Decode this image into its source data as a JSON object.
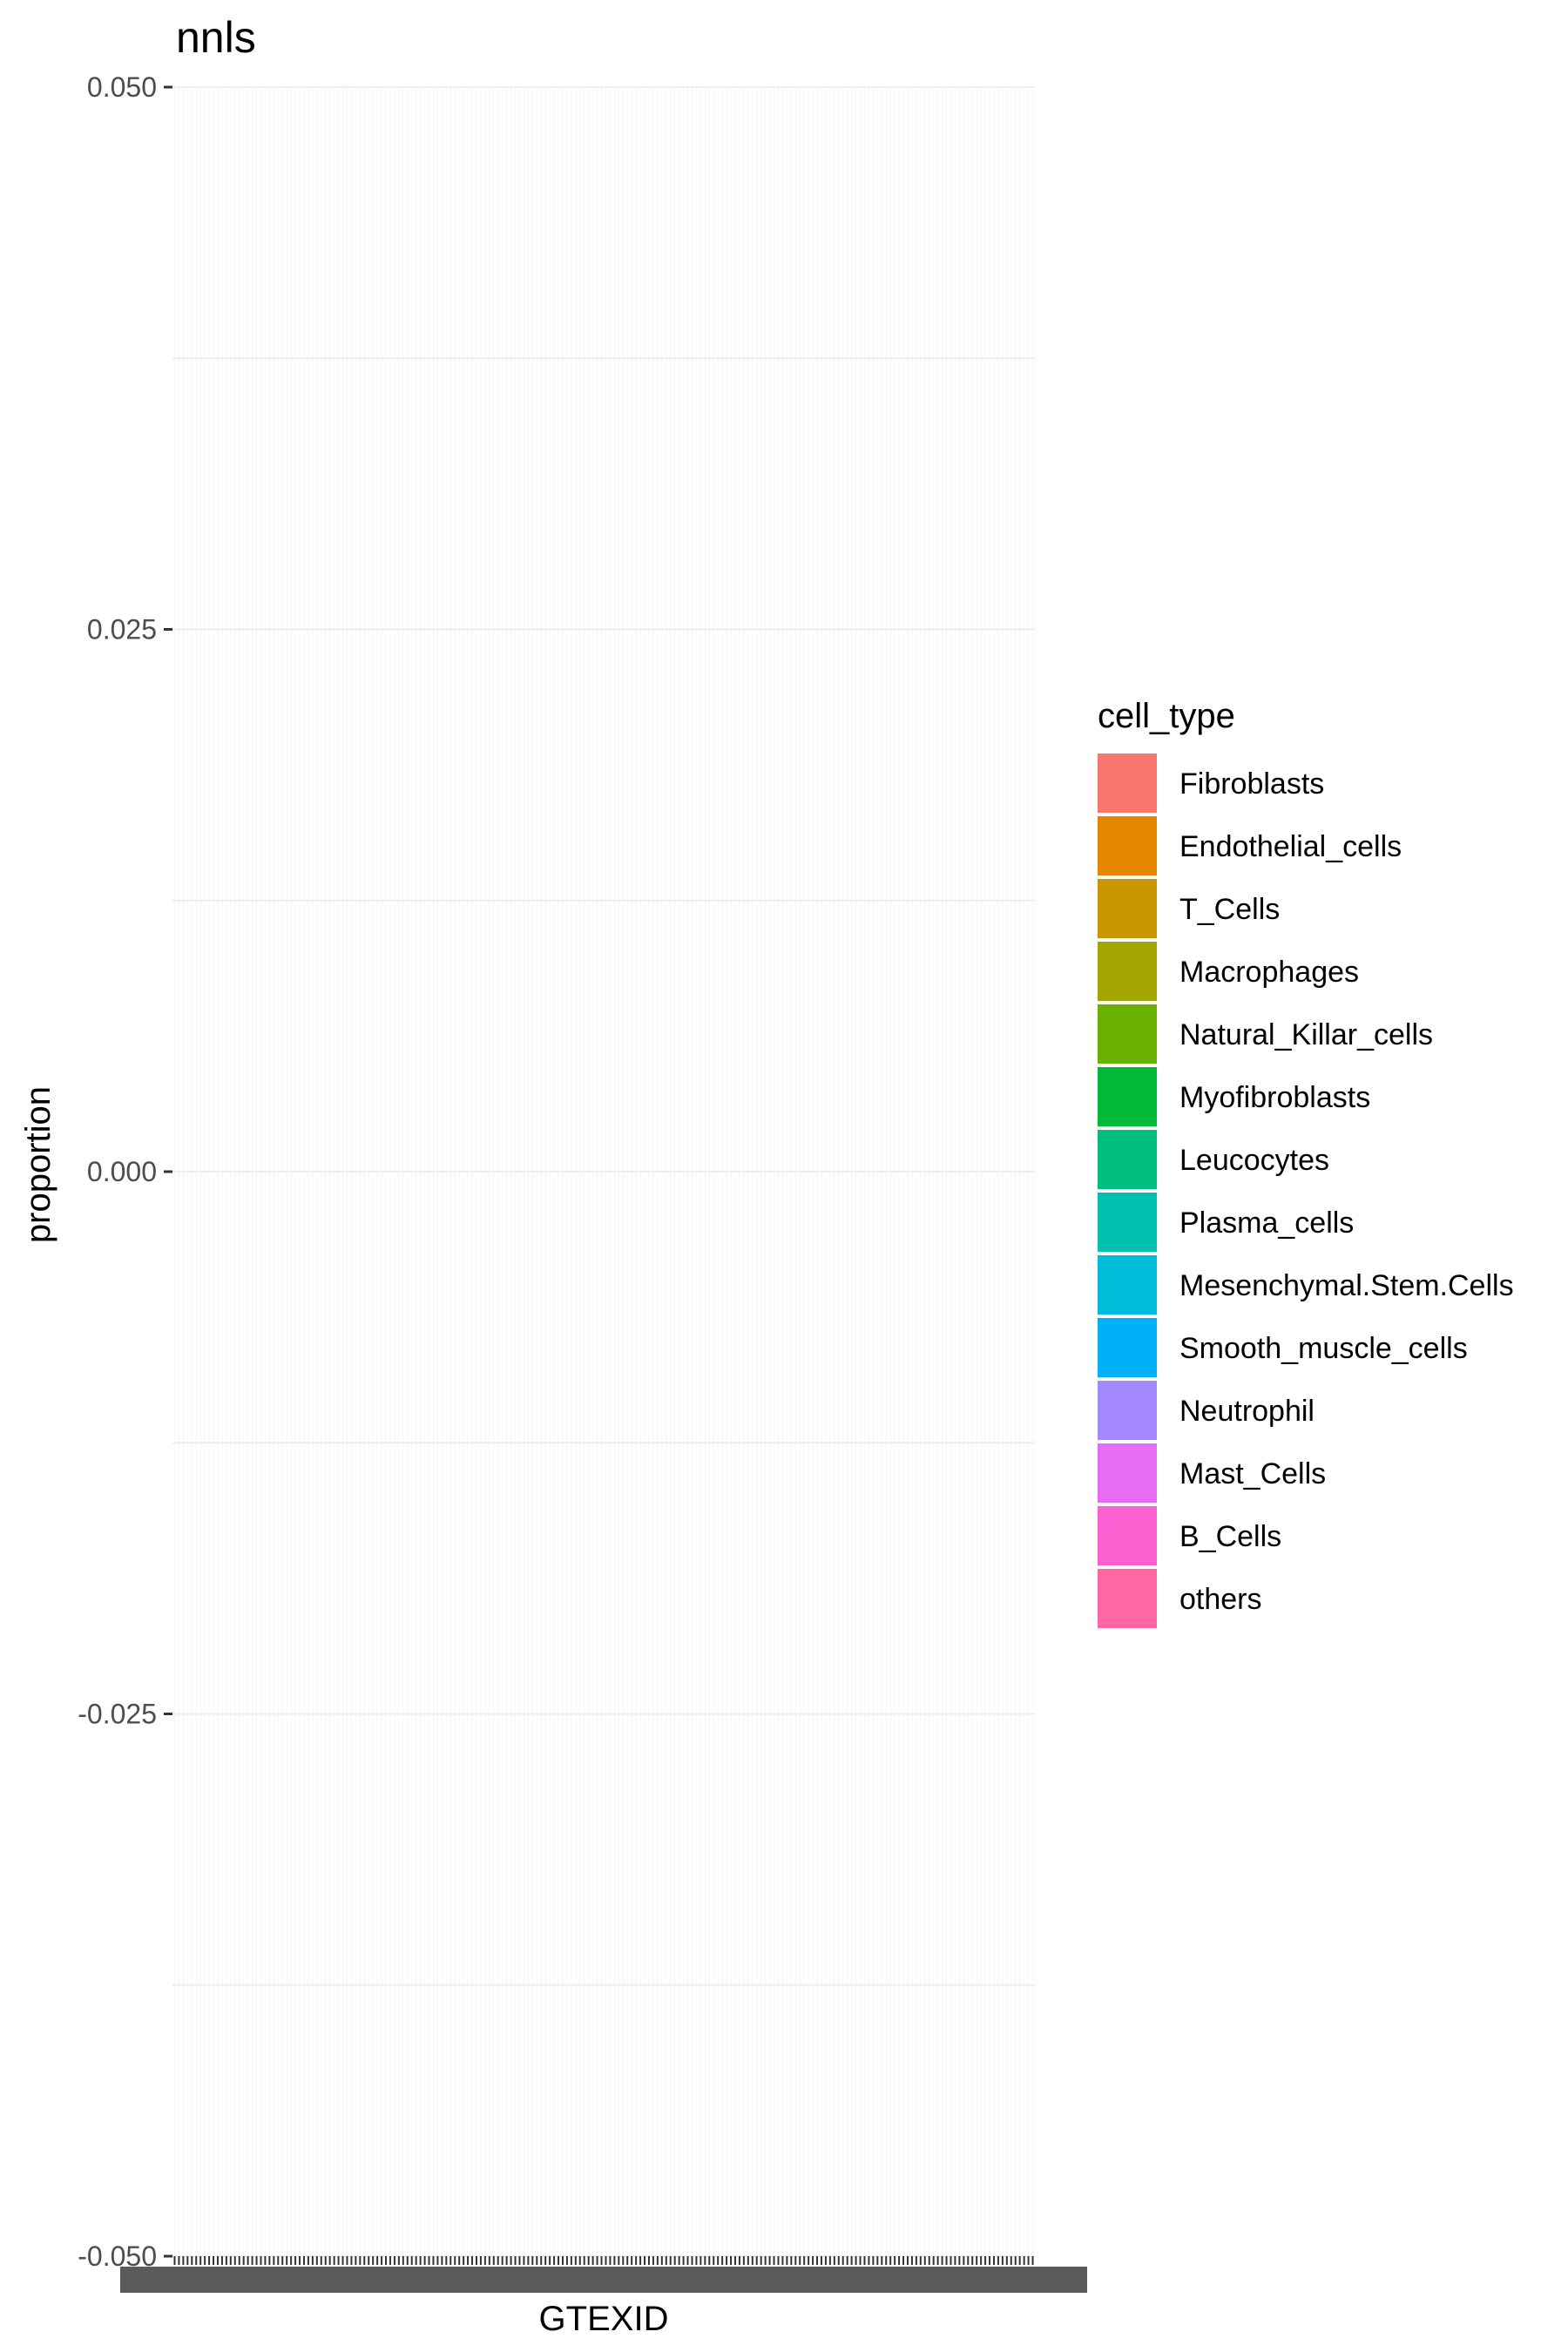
{
  "chart_data": {
    "type": "bar",
    "stacked": true,
    "title": "nnls",
    "xlabel": "GTEXID",
    "ylabel": "proportion",
    "ylim": [
      -0.05,
      0.05
    ],
    "y_ticks": [
      "0.050",
      "0.025",
      "0.000",
      "-0.025",
      "-0.050"
    ],
    "y_tick_values": [
      0.05,
      0.025,
      0.0,
      -0.025,
      -0.05
    ],
    "grid": true,
    "panel_background": "#ffffff",
    "grid_color": "#f5f5f5",
    "x_category_count": 200,
    "x_tick_labels_overplotted": true,
    "legend": {
      "title": "cell_type",
      "position": "right",
      "entries": [
        {
          "label": "Fibroblasts",
          "color": "#F8766D"
        },
        {
          "label": "Endothelial_cells",
          "color": "#E58700"
        },
        {
          "label": "T_Cells",
          "color": "#C99800"
        },
        {
          "label": "Macrophages",
          "color": "#A3A500"
        },
        {
          "label": "Natural_Killar_cells",
          "color": "#6BB100"
        },
        {
          "label": "Myofibroblasts",
          "color": "#00BA38"
        },
        {
          "label": "Leucocytes",
          "color": "#00BF7D"
        },
        {
          "label": "Plasma_cells",
          "color": "#00C0AF"
        },
        {
          "label": "Mesenchymal.Stem.Cells",
          "color": "#00BCD8"
        },
        {
          "label": "Smooth_muscle_cells",
          "color": "#00B0F6"
        },
        {
          "label": "Neutrophil",
          "color": "#A58AFF"
        },
        {
          "label": "Mast_Cells",
          "color": "#E76BF3"
        },
        {
          "label": "B_Cells",
          "color": "#FD61D1"
        },
        {
          "label": "others",
          "color": "#FF67A4"
        }
      ]
    },
    "series": [],
    "values": []
  }
}
